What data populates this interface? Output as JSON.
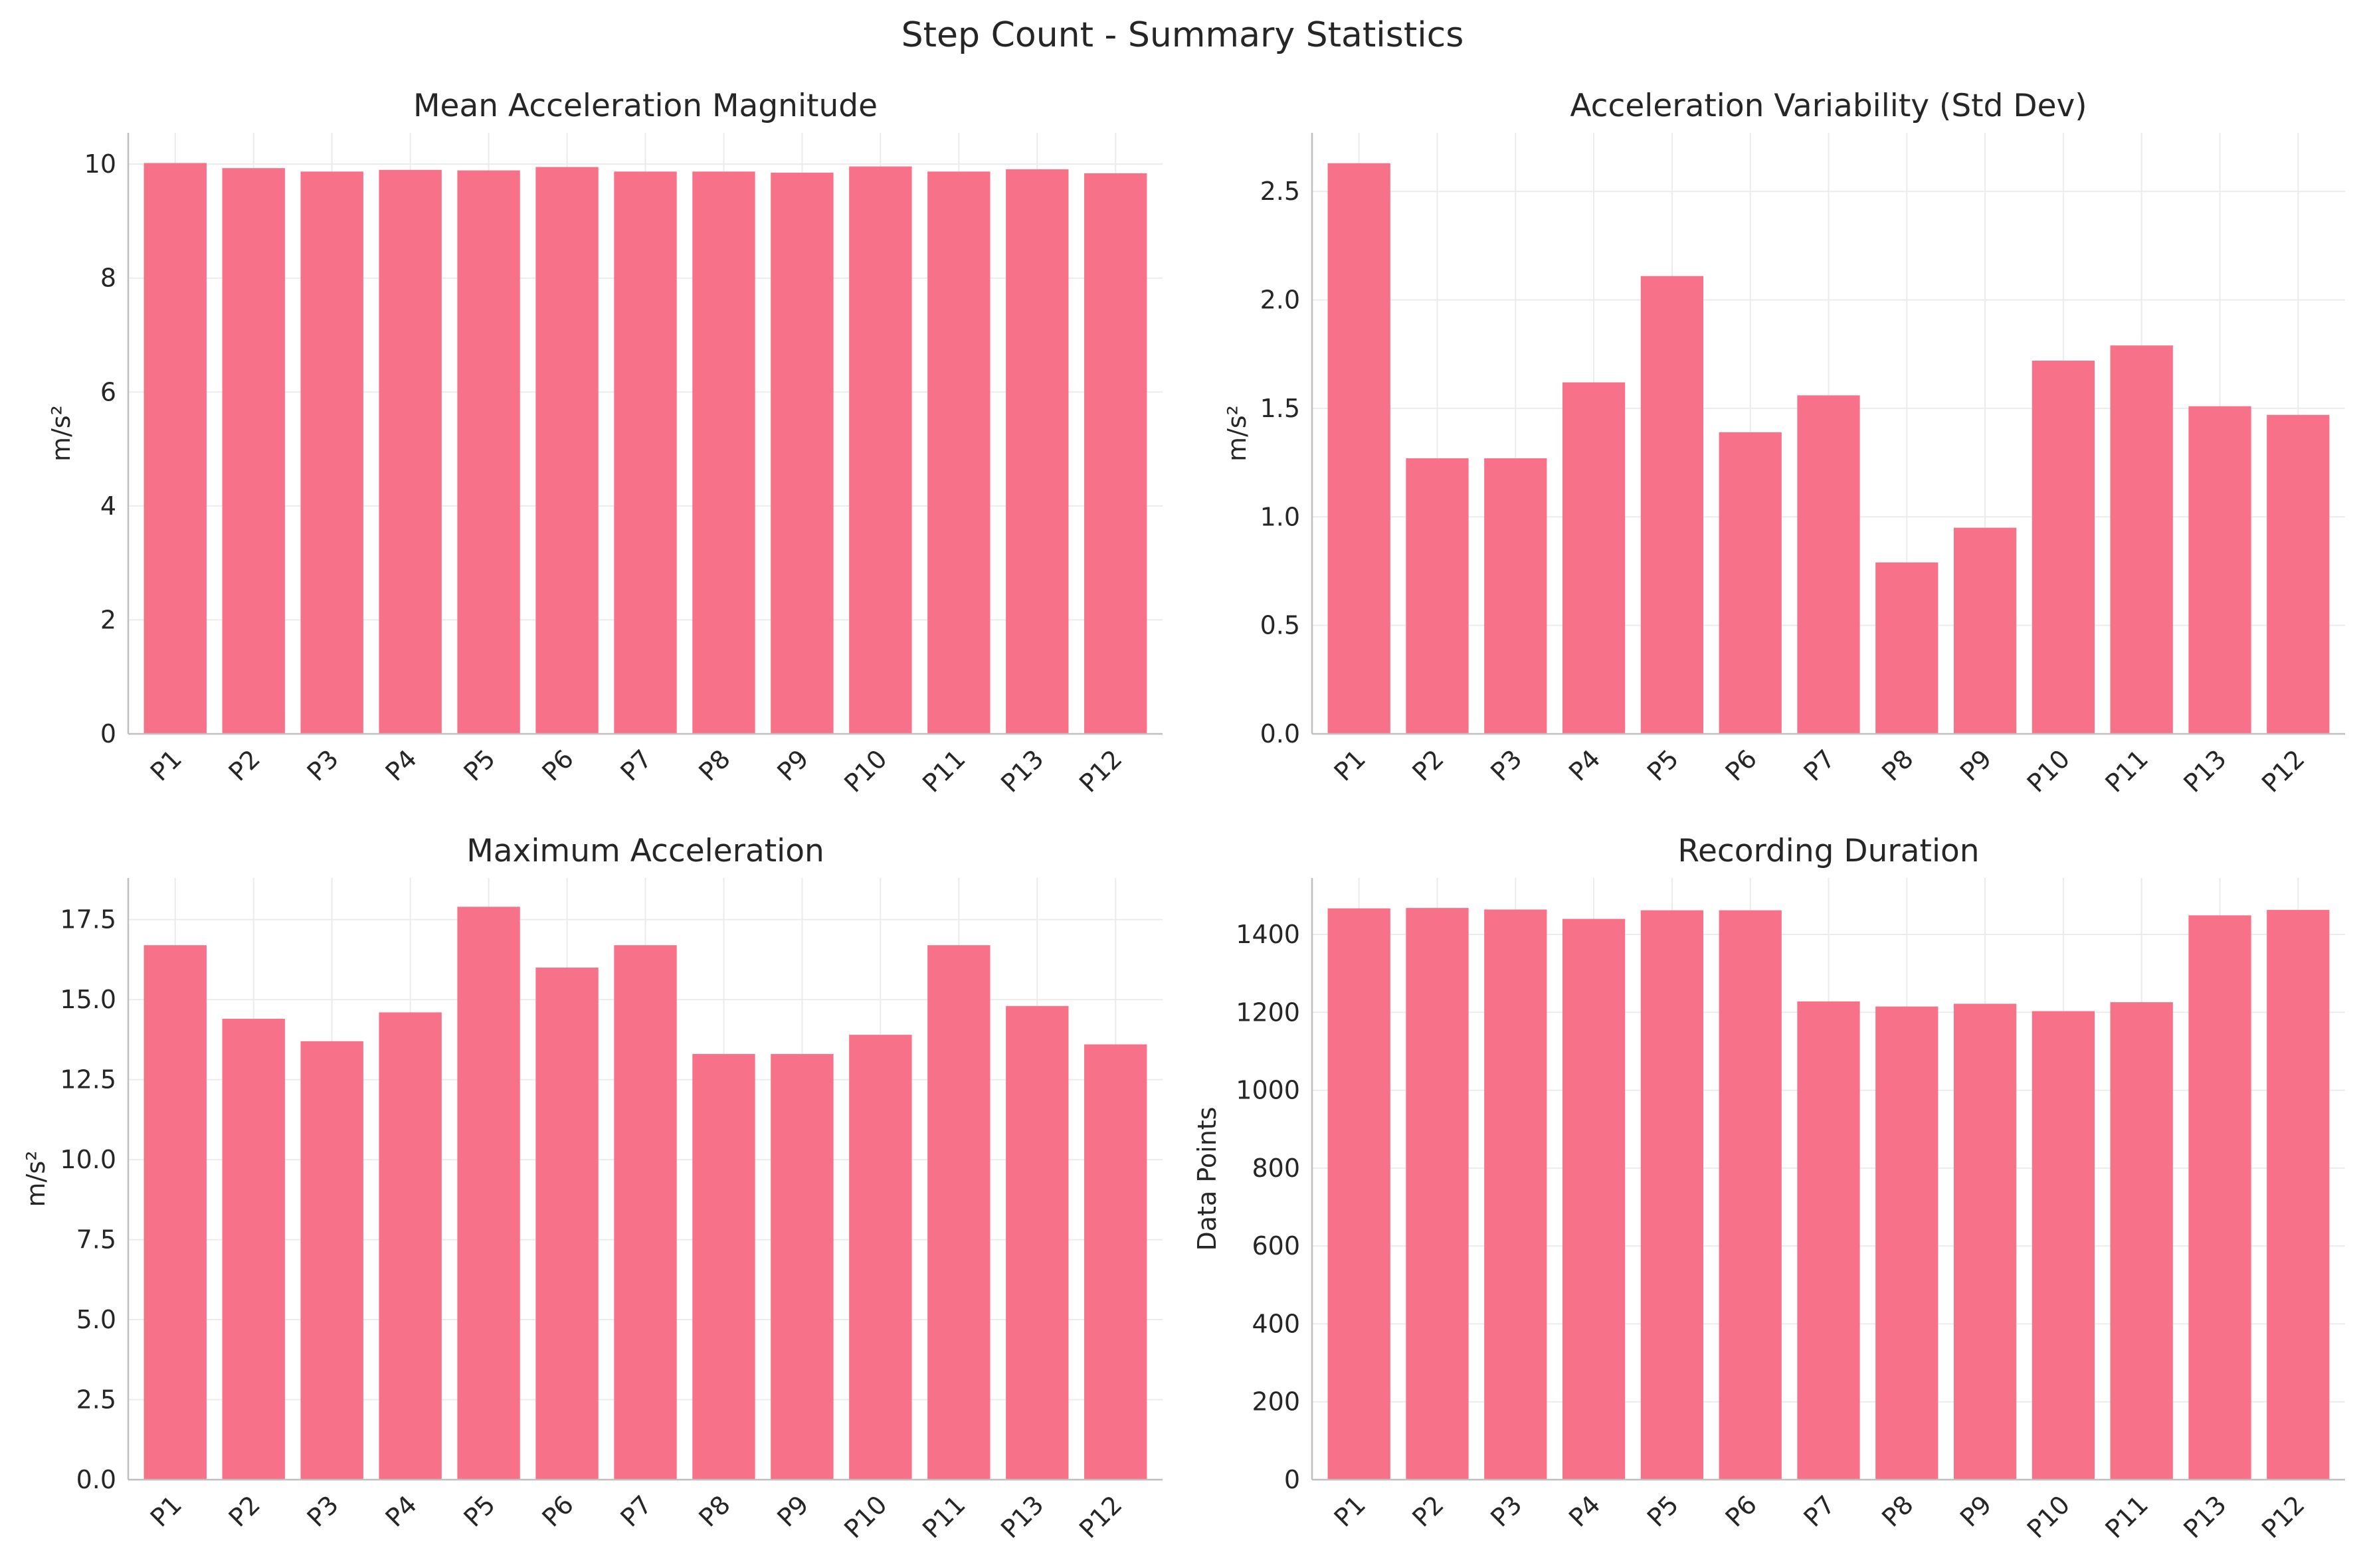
{
  "suptitle": "Step Count - Summary Statistics",
  "colors": {
    "bar": "#f77189",
    "grid": "#ebebeb",
    "spine": "#bfbfbf",
    "text": "#262626"
  },
  "chart_data": [
    {
      "type": "bar",
      "title": "Mean Acceleration Magnitude",
      "ylabel": "m/s²",
      "xlabel": "",
      "categories": [
        "P1",
        "P2",
        "P3",
        "P4",
        "P5",
        "P6",
        "P7",
        "P8",
        "P9",
        "P10",
        "P11",
        "P13",
        "P12"
      ],
      "values": [
        10.02,
        9.93,
        9.87,
        9.9,
        9.89,
        9.95,
        9.87,
        9.87,
        9.85,
        9.96,
        9.87,
        9.91,
        9.84
      ],
      "ylim": [
        0,
        10.55
      ],
      "yticks": [
        0,
        2,
        4,
        6,
        8,
        10
      ],
      "ytick_labels": [
        "0",
        "2",
        "4",
        "6",
        "8",
        "10"
      ],
      "grid": true
    },
    {
      "type": "bar",
      "title": "Acceleration Variability (Std Dev)",
      "ylabel": "m/s²",
      "xlabel": "",
      "categories": [
        "P1",
        "P2",
        "P3",
        "P4",
        "P5",
        "P6",
        "P7",
        "P8",
        "P9",
        "P10",
        "P11",
        "P13",
        "P12"
      ],
      "values": [
        2.63,
        1.27,
        1.27,
        1.62,
        2.11,
        1.39,
        1.56,
        0.79,
        0.95,
        1.72,
        1.79,
        1.51,
        1.47
      ],
      "ylim": [
        0,
        2.77
      ],
      "yticks": [
        0,
        0.5,
        1,
        1.5,
        2,
        2.5
      ],
      "ytick_labels": [
        "0.0",
        "0.5",
        "1.0",
        "1.5",
        "2.0",
        "2.5"
      ],
      "grid": true
    },
    {
      "type": "bar",
      "title": "Maximum Acceleration",
      "ylabel": "m/s²",
      "xlabel": "",
      "categories": [
        "P1",
        "P2",
        "P3",
        "P4",
        "P5",
        "P6",
        "P7",
        "P8",
        "P9",
        "P10",
        "P11",
        "P13",
        "P12"
      ],
      "values": [
        16.7,
        14.4,
        13.7,
        14.6,
        17.9,
        16.0,
        16.7,
        13.3,
        13.3,
        13.9,
        16.7,
        14.8,
        13.6
      ],
      "ylim": [
        0,
        18.8
      ],
      "yticks": [
        0,
        2.5,
        5,
        7.5,
        10,
        12.5,
        15,
        17.5
      ],
      "ytick_labels": [
        "0.0",
        "2.5",
        "5.0",
        "7.5",
        "10.0",
        "12.5",
        "15.0",
        "17.5"
      ],
      "grid": true
    },
    {
      "type": "bar",
      "title": "Recording Duration",
      "ylabel": "Data Points",
      "xlabel": "",
      "categories": [
        "P1",
        "P2",
        "P3",
        "P4",
        "P5",
        "P6",
        "P7",
        "P8",
        "P9",
        "P10",
        "P11",
        "P13",
        "P12"
      ],
      "values": [
        1467,
        1468,
        1464,
        1440,
        1462,
        1462,
        1228,
        1215,
        1222,
        1203,
        1226,
        1449,
        1463
      ],
      "ylim": [
        0,
        1545
      ],
      "yticks": [
        0,
        200,
        400,
        600,
        800,
        1000,
        1200,
        1400
      ],
      "ytick_labels": [
        "0",
        "200",
        "400",
        "600",
        "800",
        "1000",
        "1200",
        "1400"
      ],
      "grid": true
    }
  ]
}
